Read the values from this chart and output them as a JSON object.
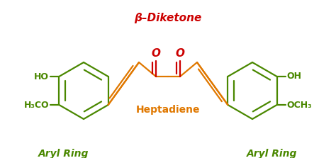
{
  "title": "β–Diketone",
  "title_color": "#cc0000",
  "heptadiene_label": "Heptadiene",
  "heptadiene_color": "#e07800",
  "aryl_ring_label": "Aryl Ring",
  "aryl_ring_color": "#4a8800",
  "green_color": "#4a8800",
  "orange_color": "#e07800",
  "red_color": "#cc0000",
  "bg_color": "#ffffff",
  "figsize": [
    4.74,
    2.23
  ],
  "dpi": 100
}
